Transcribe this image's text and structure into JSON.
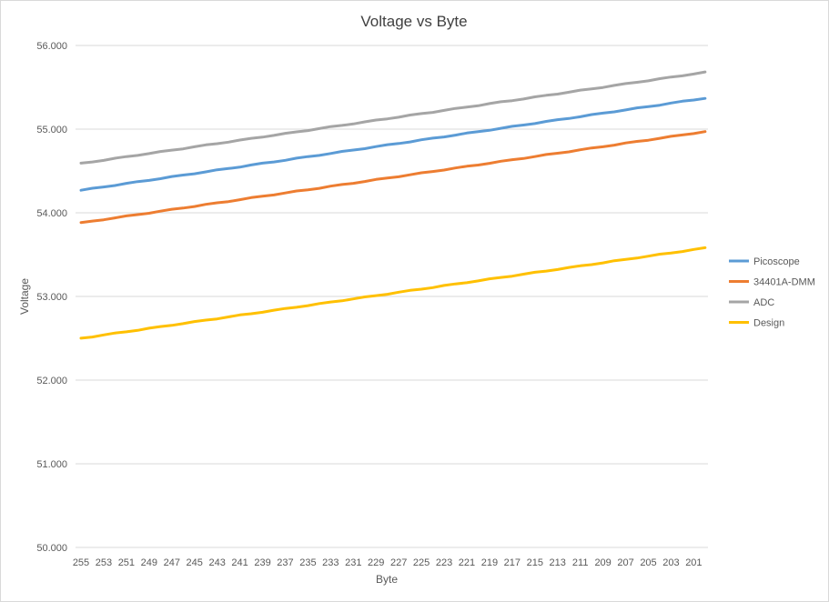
{
  "chart_data": {
    "type": "line",
    "title": "Voltage vs Byte",
    "xlabel": "Byte",
    "ylabel": "Voltage",
    "ylim": [
      50,
      56
    ],
    "yticks": [
      "50.000",
      "51.000",
      "52.000",
      "53.000",
      "54.000",
      "55.000",
      "56.000"
    ],
    "x_start": 255,
    "x_end": 200,
    "xtick_labels": [
      "255",
      "253",
      "251",
      "249",
      "247",
      "245",
      "243",
      "241",
      "239",
      "237",
      "235",
      "233",
      "231",
      "229",
      "227",
      "225",
      "223",
      "221",
      "219",
      "217",
      "215",
      "213",
      "211",
      "209",
      "207",
      "205",
      "203",
      "201"
    ],
    "grid": true,
    "legend_position": "right",
    "series": [
      {
        "name": "Picoscope",
        "color": "#5b9bd5",
        "start": 54.27,
        "end": 55.37
      },
      {
        "name": "34401A-DMM",
        "color": "#ed7d31",
        "start": 53.88,
        "end": 54.97
      },
      {
        "name": "ADC",
        "color": "#a5a5a5",
        "start": 54.59,
        "end": 55.68
      },
      {
        "name": "Design",
        "color": "#ffc000",
        "start": 52.5,
        "end": 53.58
      }
    ]
  }
}
